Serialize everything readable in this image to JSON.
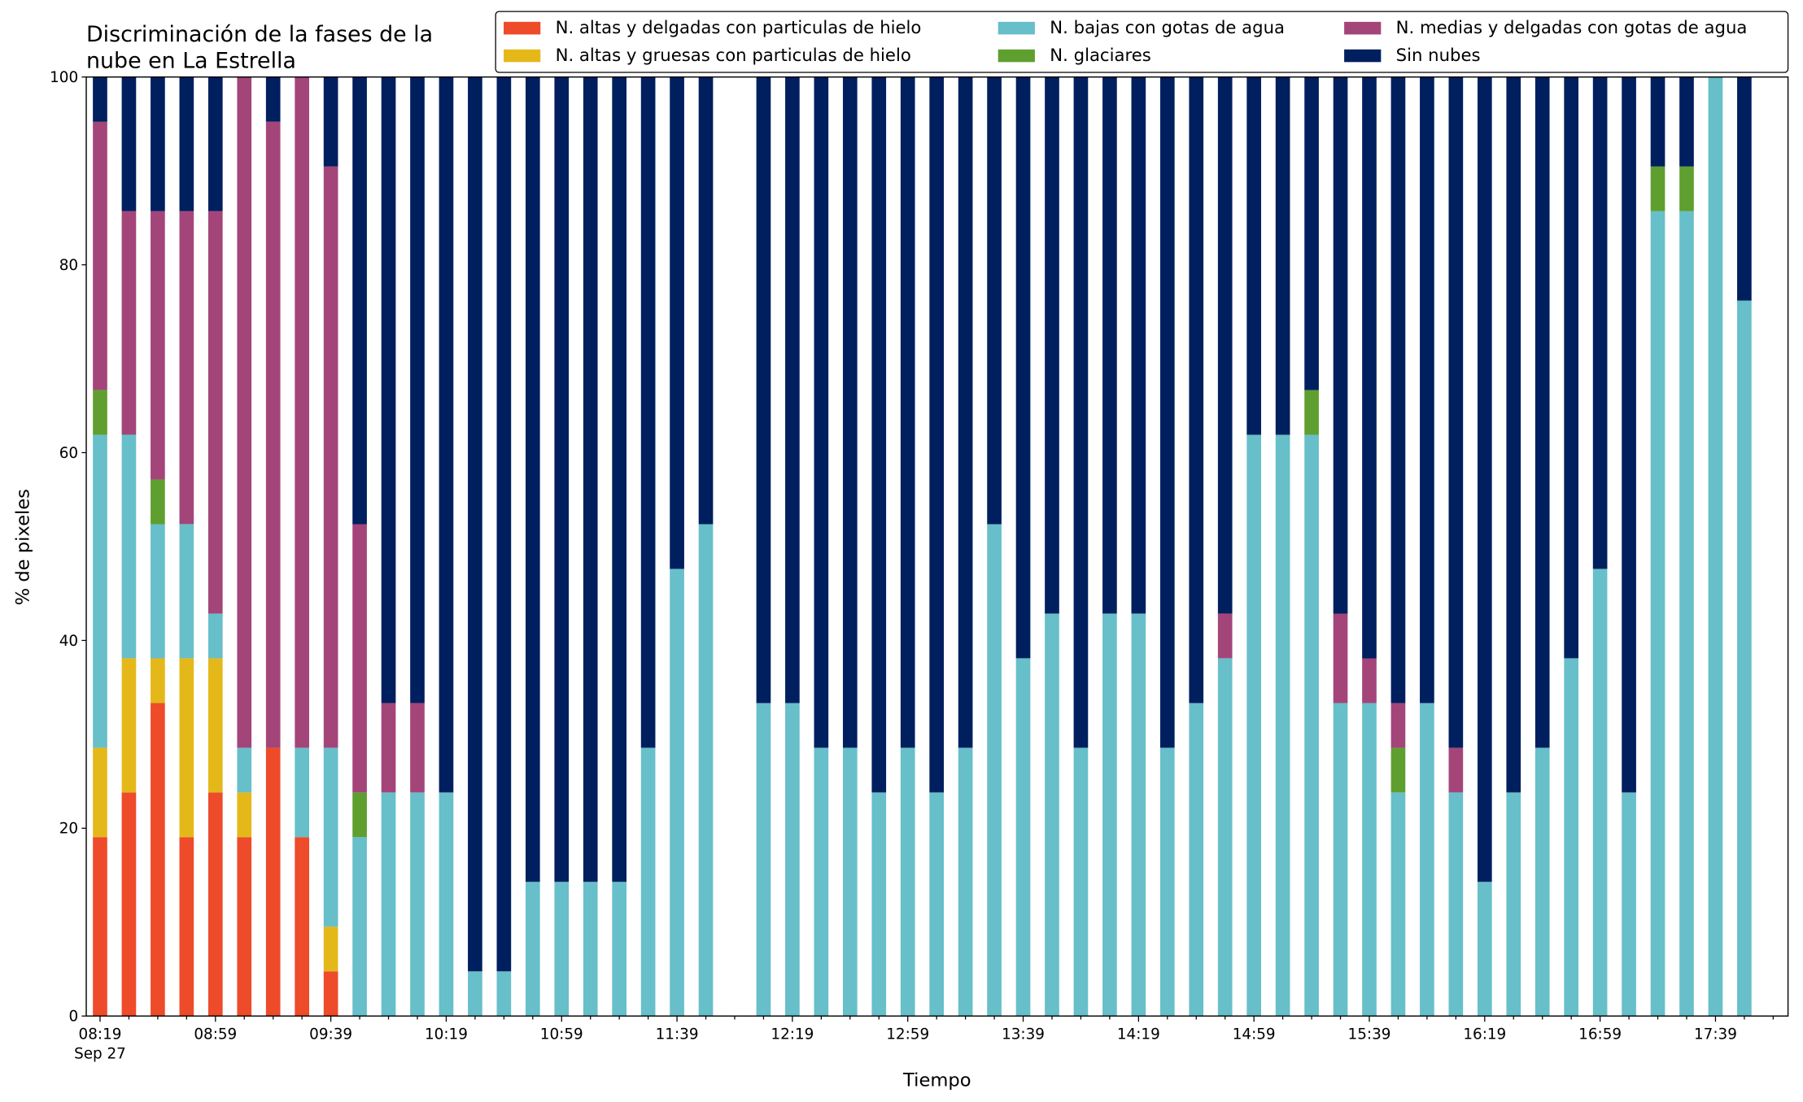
{
  "chart_data": {
    "type": "stacked_bar",
    "title": [
      "Discriminación de la fases de la",
      "nube en La Estrella"
    ],
    "x_label": "Tiempo",
    "y_label": "% de pixeles",
    "date_label": "Sep 27",
    "categories": [
      "08:19",
      null,
      null,
      null,
      "08:59",
      null,
      null,
      null,
      "09:39",
      null,
      null,
      null,
      "10:19",
      null,
      null,
      null,
      "10:59",
      null,
      null,
      null,
      "11:39",
      null,
      null,
      null,
      "12:19",
      null,
      null,
      null,
      "12:59",
      null,
      null,
      null,
      "13:39",
      null,
      null,
      null,
      "14:19",
      null,
      null,
      null,
      "14:59",
      null,
      null,
      null,
      "15:39",
      null,
      null,
      null,
      "16:19",
      null,
      null,
      null,
      "16:59",
      null,
      null,
      null,
      "17:39",
      null
    ],
    "ylim": [
      0,
      100
    ],
    "yticks": [
      0,
      20,
      40,
      60,
      80,
      100
    ],
    "legend": "top-right",
    "series": [
      {
        "name": "N. altas y delgadas con particulas de hielo",
        "color": "#ee4b2b",
        "values": [
          19.05,
          23.81,
          33.33,
          19.05,
          23.81,
          19.05,
          28.57,
          19.05,
          4.76,
          0,
          0,
          0,
          0,
          0,
          0,
          0,
          0,
          0,
          0,
          0,
          0,
          0,
          null,
          0,
          0,
          0,
          0,
          0,
          0,
          0,
          0,
          0,
          0,
          0,
          0,
          0,
          0,
          0,
          0,
          0,
          0,
          0,
          0,
          0,
          0,
          0,
          0,
          0,
          0,
          0,
          0,
          0,
          0,
          0,
          0,
          0,
          0,
          0
        ]
      },
      {
        "name": "N. altas y gruesas con particulas de hielo",
        "color": "#e5b81a",
        "values": [
          9.52,
          14.29,
          4.76,
          19.05,
          14.29,
          4.76,
          0,
          0,
          4.76,
          0,
          0,
          0,
          0,
          0,
          0,
          0,
          0,
          0,
          0,
          0,
          0,
          0,
          null,
          0,
          0,
          0,
          0,
          0,
          0,
          0,
          0,
          0,
          0,
          0,
          0,
          0,
          0,
          0,
          0,
          0,
          0,
          0,
          0,
          0,
          0,
          0,
          0,
          0,
          0,
          0,
          0,
          0,
          0,
          0,
          0,
          0,
          0,
          0
        ]
      },
      {
        "name": "N. bajas con gotas de agua",
        "color": "#67bfca",
        "values": [
          33.33,
          23.81,
          14.29,
          14.29,
          4.76,
          4.76,
          0,
          9.52,
          19.05,
          19.05,
          23.81,
          23.81,
          23.81,
          4.76,
          4.76,
          14.29,
          14.29,
          14.29,
          14.29,
          28.57,
          47.62,
          52.38,
          null,
          33.33,
          33.33,
          28.57,
          28.57,
          23.81,
          28.57,
          23.81,
          28.57,
          52.38,
          38.1,
          42.86,
          28.57,
          42.86,
          42.86,
          28.57,
          33.33,
          38.1,
          61.9,
          61.9,
          61.9,
          33.33,
          33.33,
          23.81,
          33.33,
          23.81,
          14.29,
          23.81,
          28.57,
          38.1,
          47.62,
          23.81,
          85.71,
          85.71,
          100,
          76.19
        ]
      },
      {
        "name": "N. glaciares",
        "color": "#5f9f2f",
        "values": [
          4.76,
          0,
          4.76,
          0,
          0,
          0,
          0,
          0,
          0,
          4.76,
          0,
          0,
          0,
          0,
          0,
          0,
          0,
          0,
          0,
          0,
          0,
          0,
          null,
          0,
          0,
          0,
          0,
          0,
          0,
          0,
          0,
          0,
          0,
          0,
          0,
          0,
          0,
          0,
          0,
          0,
          0,
          0,
          4.76,
          0,
          0,
          4.76,
          0,
          0,
          0,
          0,
          0,
          0,
          0,
          0,
          4.76,
          4.76,
          0,
          0
        ]
      },
      {
        "name": "N. medias y delgadas con gotas de agua",
        "color": "#a4457a",
        "values": [
          28.57,
          23.81,
          28.57,
          33.33,
          42.86,
          71.43,
          66.67,
          71.43,
          61.9,
          28.57,
          9.52,
          9.52,
          0,
          0,
          0,
          0,
          0,
          0,
          0,
          0,
          0,
          0,
          null,
          0,
          0,
          0,
          0,
          0,
          0,
          0,
          0,
          0,
          0,
          0,
          0,
          0,
          0,
          0,
          0,
          4.76,
          0,
          0,
          0,
          9.52,
          4.76,
          4.76,
          0,
          4.76,
          0,
          0,
          0,
          0,
          0,
          0,
          0,
          0,
          0,
          0
        ]
      },
      {
        "name": "Sin nubes",
        "color": "#001f5f",
        "values": [
          4.76,
          14.29,
          14.29,
          14.29,
          14.29,
          0,
          4.76,
          0,
          9.52,
          47.62,
          66.67,
          66.67,
          76.19,
          95.24,
          95.24,
          85.71,
          85.71,
          85.71,
          85.71,
          71.43,
          52.38,
          47.62,
          null,
          66.67,
          66.67,
          71.43,
          71.43,
          76.19,
          71.43,
          76.19,
          71.43,
          47.62,
          61.9,
          57.14,
          71.43,
          57.14,
          57.14,
          71.43,
          66.67,
          57.14,
          38.1,
          38.1,
          33.33,
          57.14,
          61.9,
          66.67,
          66.67,
          71.43,
          85.71,
          76.19,
          71.43,
          61.9,
          52.38,
          76.19,
          9.52,
          9.52,
          0,
          23.81
        ]
      }
    ]
  }
}
